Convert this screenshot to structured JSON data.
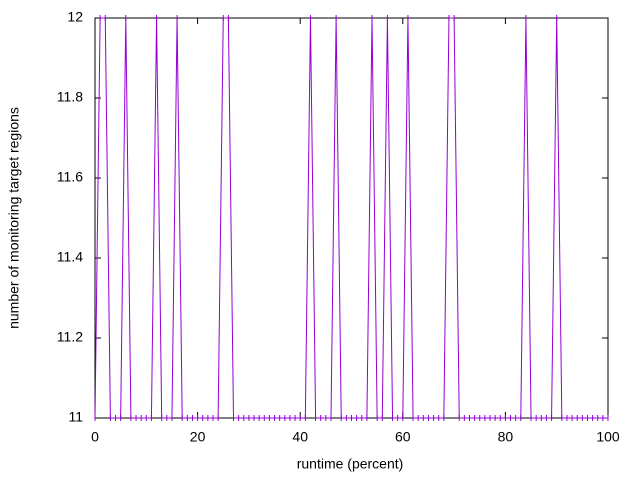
{
  "chart_data": {
    "type": "line",
    "xlabel": "runtime (percent)",
    "ylabel": "number of monitoring target regions",
    "x": [
      0,
      1,
      2,
      3,
      4,
      5,
      6,
      7,
      8,
      9,
      10,
      11,
      12,
      13,
      14,
      15,
      16,
      17,
      18,
      19,
      20,
      21,
      22,
      23,
      24,
      25,
      26,
      27,
      28,
      29,
      30,
      31,
      32,
      33,
      34,
      35,
      36,
      37,
      38,
      39,
      40,
      41,
      42,
      43,
      44,
      45,
      46,
      47,
      48,
      49,
      50,
      51,
      52,
      53,
      54,
      55,
      56,
      57,
      58,
      59,
      60,
      61,
      62,
      63,
      64,
      65,
      66,
      67,
      68,
      69,
      70,
      71,
      72,
      73,
      74,
      75,
      76,
      77,
      78,
      79,
      80,
      81,
      82,
      83,
      84,
      85,
      86,
      87,
      88,
      89,
      90,
      91,
      92,
      93,
      94,
      95,
      96,
      97,
      98,
      99,
      100
    ],
    "values": [
      11,
      12,
      12,
      11,
      11,
      11,
      12,
      11,
      11,
      11,
      11,
      11,
      12,
      11,
      11,
      11,
      12,
      11,
      11,
      11,
      11,
      11,
      11,
      11,
      11,
      12,
      12,
      11,
      11,
      11,
      11,
      11,
      11,
      11,
      11,
      11,
      11,
      11,
      11,
      11,
      11,
      11,
      12,
      11,
      11,
      11,
      11,
      12,
      11,
      11,
      11,
      11,
      11,
      11,
      12,
      11,
      11,
      12,
      11,
      11,
      11,
      12,
      11,
      11,
      11,
      11,
      11,
      11,
      11,
      12,
      12,
      11,
      11,
      11,
      11,
      11,
      11,
      11,
      11,
      11,
      11,
      11,
      11,
      11,
      12,
      11,
      11,
      11,
      11,
      11,
      12,
      11,
      11,
      11,
      11,
      11,
      11,
      11,
      11,
      11,
      11
    ],
    "color": "#9400d3",
    "xlim": [
      0,
      100
    ],
    "xticks": [
      0,
      20,
      40,
      60,
      80,
      100
    ],
    "ylim": [
      11,
      12
    ],
    "yticks": [
      11,
      11.2,
      11.4,
      11.6,
      11.8,
      12
    ]
  }
}
